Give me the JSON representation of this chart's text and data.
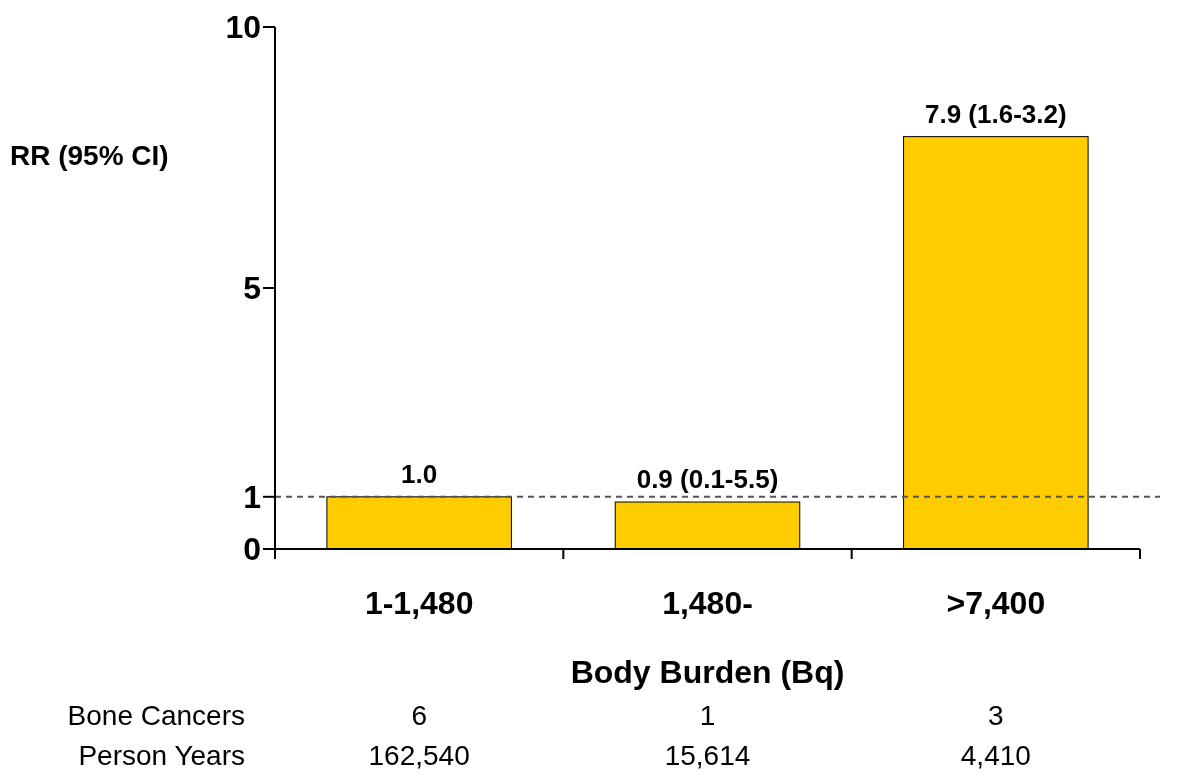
{
  "chart_data": {
    "type": "bar",
    "ylabel": "RR (95% CI)",
    "xlabel": "Body Burden (Bq)",
    "categories": [
      "1-1,480",
      "1,480-",
      ">7,400"
    ],
    "values": [
      1.0,
      0.9,
      7.9
    ],
    "value_labels": [
      "1.0",
      "0.9 (0.1-5.5)",
      "7.9 (1.6-3.2)"
    ],
    "color": "#ffcc00",
    "ylim": [
      0,
      10
    ],
    "yticks": [
      0,
      1,
      5,
      10
    ],
    "grid": false,
    "ref_lines": [
      {
        "axis": "y",
        "value": 1,
        "label": null,
        "color": "#555555",
        "line_style": "dashed"
      }
    ],
    "annotations": [
      "Bone Cancers",
      "6",
      "1",
      "3",
      "Person Years",
      "162,540",
      "15,614",
      "4,410"
    ]
  }
}
